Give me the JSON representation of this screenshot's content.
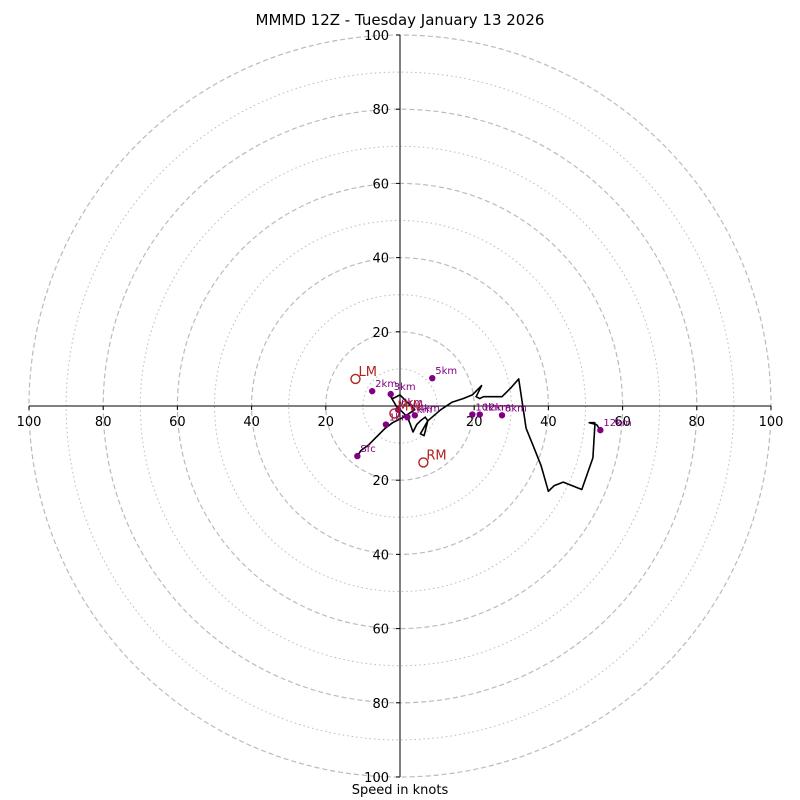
{
  "chart_data": {
    "type": "hodograph",
    "title": "MMMD 12Z - Tuesday January 13 2026",
    "xlabel": "Speed in knots",
    "rmax": 100,
    "rings_dashed": [
      20,
      40,
      60,
      80,
      100
    ],
    "rings_dotted": [
      10,
      30,
      50,
      70,
      90
    ],
    "x_tick_labels": [
      "100",
      "80",
      "60",
      "40",
      "20",
      "20",
      "40",
      "60",
      "80",
      "100"
    ],
    "y_tick_labels": [
      "100",
      "80",
      "60",
      "40",
      "20",
      "20",
      "40",
      "60",
      "80",
      "100"
    ],
    "tick_values": [
      -100,
      -80,
      -60,
      -40,
      -20,
      20,
      40,
      60,
      80,
      100
    ],
    "trace_u": [
      -11.5,
      -10.5,
      -8.5,
      -7,
      -5.5,
      -4,
      -2,
      1,
      4,
      2,
      0,
      -2,
      -2.5,
      -1,
      0.5,
      2,
      2.8,
      3.5,
      4.5,
      5.5,
      6.8,
      7.5,
      6.5,
      5.5,
      7.5,
      11,
      14,
      17,
      19.5,
      22,
      20.5,
      21.5,
      22.5,
      24,
      25.5,
      27.5,
      30,
      32,
      34,
      36,
      38,
      40,
      41.5,
      44,
      49,
      52,
      52.5,
      52.5,
      51,
      53,
      54
    ],
    "trace_v": [
      -13.5,
      -12,
      -10.5,
      -9,
      -7.5,
      -6,
      -4.5,
      -3,
      -1,
      1,
      3,
      2,
      2.5,
      0,
      -1.5,
      -3,
      -5,
      -7,
      -5,
      -4,
      -3,
      -4,
      -8,
      -7.5,
      -4,
      -1,
      1,
      2,
      3,
      5.5,
      2.5,
      2,
      2.5,
      2.5,
      2.5,
      2.5,
      5,
      7.3,
      -6,
      -11,
      -16,
      -23,
      -21.5,
      -20.5,
      -22.5,
      -14,
      -5.5,
      -4.5,
      -4.5,
      -5,
      -6.5
    ],
    "height_markers": [
      {
        "label": "Sfc",
        "u": -11.5,
        "v": -13.5
      },
      {
        "label": "1km",
        "u": -3.8,
        "v": -5
      },
      {
        "label": "2km",
        "u": -7.5,
        "v": 4
      },
      {
        "label": "3km",
        "u": -2.5,
        "v": 3.2
      },
      {
        "label": "4km",
        "u": 4,
        "v": -2.5
      },
      {
        "label": "5km",
        "u": 8.7,
        "v": 7.5
      },
      {
        "label": "6km",
        "u": -0.5,
        "v": -1
      },
      {
        "label": "7km",
        "u": 2,
        "v": -3
      },
      {
        "label": "8km",
        "u": 27.5,
        "v": -2.5
      },
      {
        "label": "10km",
        "u": 19.5,
        "v": -2.3
      },
      {
        "label": "12km",
        "u": 21.5,
        "v": -2.3
      },
      {
        "label": "12km",
        "u": 54,
        "v": -6.5
      }
    ],
    "motion_markers": [
      {
        "label": "LM",
        "u": -12,
        "v": 7.3
      },
      {
        "label": "RM",
        "u": 6.3,
        "v": -15.2
      },
      {
        "label": "MW",
        "u": -1.5,
        "v": -2
      }
    ],
    "colors": {
      "trace": "#000000",
      "markers": "#800080",
      "motion": "#b22222",
      "rings": "#bbbbbb"
    }
  }
}
